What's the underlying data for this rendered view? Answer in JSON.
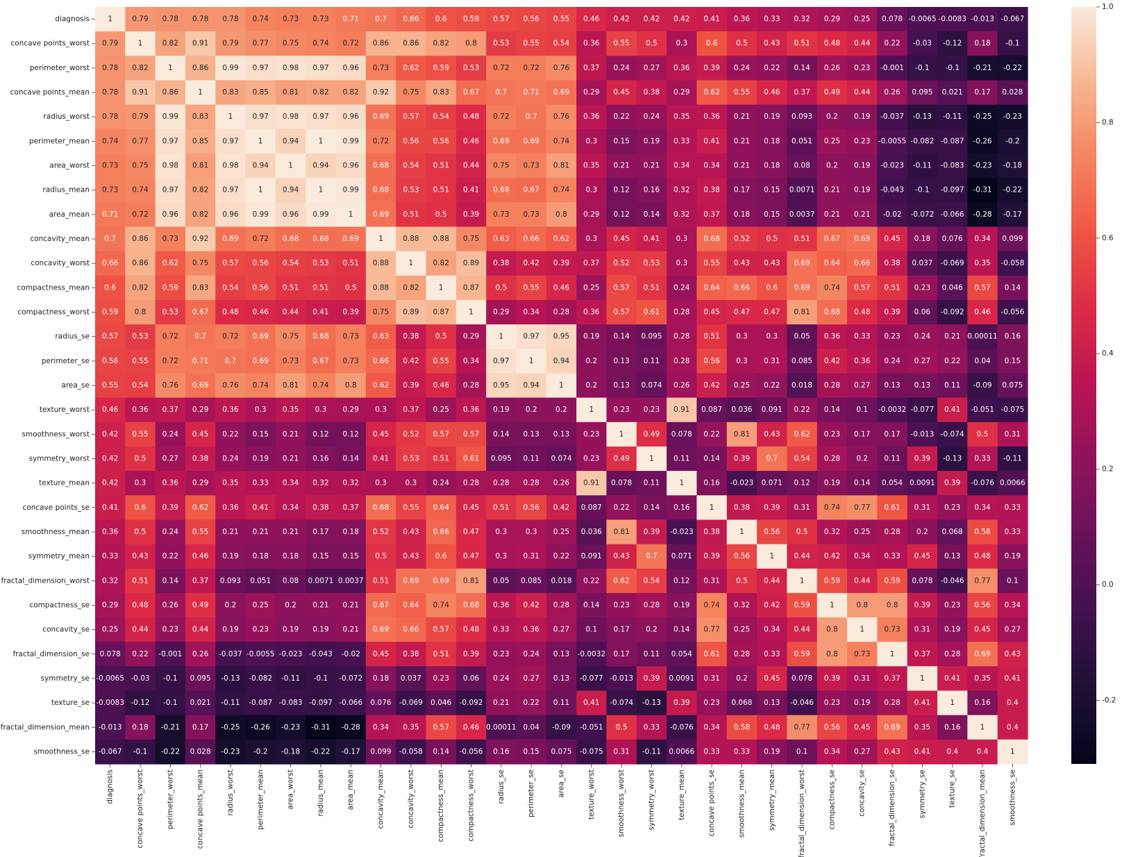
{
  "chart_data": {
    "type": "heatmap",
    "title": "",
    "xlabel": "",
    "ylabel": "",
    "labels": [
      "diagnosis",
      "concave points_worst",
      "perimeter_worst",
      "concave points_mean",
      "radius_worst",
      "perimeter_mean",
      "area_worst",
      "radius_mean",
      "area_mean",
      "concavity_mean",
      "concavity_worst",
      "compactness_mean",
      "compactness_worst",
      "radius_se",
      "perimeter_se",
      "area_se",
      "texture_worst",
      "smoothness_worst",
      "symmetry_worst",
      "texture_mean",
      "concave points_se",
      "smoothness_mean",
      "symmetry_mean",
      "fractal_dimension_worst",
      "compactness_se",
      "concavity_se",
      "fractal_dimension_se",
      "symmetry_se",
      "texture_se",
      "fractal_dimension_mean",
      "smoothness_se"
    ],
    "matrix_text": [
      [
        "1",
        "0.79",
        "0.78",
        "0.78",
        "0.78",
        "0.74",
        "0.73",
        "0.73",
        "0.71",
        "0.7",
        "0.66",
        "0.6",
        "0.59",
        "0.57",
        "0.56",
        "0.55",
        "0.46",
        "0.42",
        "0.42",
        "0.42",
        "0.41",
        "0.36",
        "0.33",
        "0.32",
        "0.29",
        "0.25",
        "0.078",
        "-0.0065",
        "-0.0083",
        "-0.013",
        "-0.067"
      ],
      [
        "0.79",
        "1",
        "0.82",
        "0.91",
        "0.79",
        "0.77",
        "0.75",
        "0.74",
        "0.72",
        "0.86",
        "0.86",
        "0.82",
        "0.8",
        "0.53",
        "0.55",
        "0.54",
        "0.36",
        "0.55",
        "0.5",
        "0.3",
        "0.6",
        "0.5",
        "0.43",
        "0.51",
        "0.48",
        "0.44",
        "0.22",
        "-0.03",
        "-0.12",
        "0.18",
        "-0.1"
      ],
      [
        "0.78",
        "0.82",
        "1",
        "0.86",
        "0.99",
        "0.97",
        "0.98",
        "0.97",
        "0.96",
        "0.73",
        "0.62",
        "0.59",
        "0.53",
        "0.72",
        "0.72",
        "0.76",
        "0.37",
        "0.24",
        "0.27",
        "0.36",
        "0.39",
        "0.24",
        "0.22",
        "0.14",
        "0.26",
        "0.23",
        "-0.001",
        "-0.1",
        "-0.1",
        "-0.21",
        "-0.22"
      ],
      [
        "0.78",
        "0.91",
        "0.86",
        "1",
        "0.83",
        "0.85",
        "0.81",
        "0.82",
        "0.82",
        "0.92",
        "0.75",
        "0.83",
        "0.67",
        "0.7",
        "0.71",
        "0.69",
        "0.29",
        "0.45",
        "0.38",
        "0.29",
        "0.62",
        "0.55",
        "0.46",
        "0.37",
        "0.49",
        "0.44",
        "0.26",
        "0.095",
        "0.021",
        "0.17",
        "0.028"
      ],
      [
        "0.78",
        "0.79",
        "0.99",
        "0.83",
        "1",
        "0.97",
        "0.98",
        "0.97",
        "0.96",
        "0.69",
        "0.57",
        "0.54",
        "0.48",
        "0.72",
        "0.7",
        "0.76",
        "0.36",
        "0.22",
        "0.24",
        "0.35",
        "0.36",
        "0.21",
        "0.19",
        "0.093",
        "0.2",
        "0.19",
        "-0.037",
        "-0.13",
        "-0.11",
        "-0.25",
        "-0.23"
      ],
      [
        "0.74",
        "0.77",
        "0.97",
        "0.85",
        "0.97",
        "1",
        "0.94",
        "1",
        "0.99",
        "0.72",
        "0.56",
        "0.56",
        "0.46",
        "0.69",
        "0.69",
        "0.74",
        "0.3",
        "0.15",
        "0.19",
        "0.33",
        "0.41",
        "0.21",
        "0.18",
        "0.051",
        "0.25",
        "0.23",
        "-0.0055",
        "-0.082",
        "-0.087",
        "-0.26",
        "-0.2"
      ],
      [
        "0.73",
        "0.75",
        "0.98",
        "0.81",
        "0.98",
        "0.94",
        "1",
        "0.94",
        "0.96",
        "0.68",
        "0.54",
        "0.51",
        "0.44",
        "0.75",
        "0.73",
        "0.81",
        "0.35",
        "0.21",
        "0.21",
        "0.34",
        "0.34",
        "0.21",
        "0.18",
        "0.08",
        "0.2",
        "0.19",
        "-0.023",
        "-0.11",
        "-0.083",
        "-0.23",
        "-0.18"
      ],
      [
        "0.73",
        "0.74",
        "0.97",
        "0.82",
        "0.97",
        "1",
        "0.94",
        "1",
        "0.99",
        "0.68",
        "0.53",
        "0.51",
        "0.41",
        "0.68",
        "0.67",
        "0.74",
        "0.3",
        "0.12",
        "0.16",
        "0.32",
        "0.38",
        "0.17",
        "0.15",
        "0.0071",
        "0.21",
        "0.19",
        "-0.043",
        "-0.1",
        "-0.097",
        "-0.31",
        "-0.22"
      ],
      [
        "0.71",
        "0.72",
        "0.96",
        "0.82",
        "0.96",
        "0.99",
        "0.96",
        "0.99",
        "1",
        "0.69",
        "0.51",
        "0.5",
        "0.39",
        "0.73",
        "0.73",
        "0.8",
        "0.29",
        "0.12",
        "0.14",
        "0.32",
        "0.37",
        "0.18",
        "0.15",
        "0.0037",
        "0.21",
        "0.21",
        "-0.02",
        "-0.072",
        "-0.066",
        "-0.28",
        "-0.17"
      ],
      [
        "0.7",
        "0.86",
        "0.73",
        "0.92",
        "0.69",
        "0.72",
        "0.68",
        "0.68",
        "0.69",
        "1",
        "0.88",
        "0.88",
        "0.75",
        "0.63",
        "0.66",
        "0.62",
        "0.3",
        "0.45",
        "0.41",
        "0.3",
        "0.68",
        "0.52",
        "0.5",
        "0.51",
        "0.67",
        "0.69",
        "0.45",
        "0.18",
        "0.076",
        "0.34",
        "0.099"
      ],
      [
        "0.66",
        "0.86",
        "0.62",
        "0.75",
        "0.57",
        "0.56",
        "0.54",
        "0.53",
        "0.51",
        "0.88",
        "1",
        "0.82",
        "0.89",
        "0.38",
        "0.42",
        "0.39",
        "0.37",
        "0.52",
        "0.53",
        "0.3",
        "0.55",
        "0.43",
        "0.43",
        "0.69",
        "0.64",
        "0.66",
        "0.38",
        "0.037",
        "-0.069",
        "0.35",
        "-0.058"
      ],
      [
        "0.6",
        "0.82",
        "0.59",
        "0.83",
        "0.54",
        "0.56",
        "0.51",
        "0.51",
        "0.5",
        "0.88",
        "0.82",
        "1",
        "0.87",
        "0.5",
        "0.55",
        "0.46",
        "0.25",
        "0.57",
        "0.51",
        "0.24",
        "0.64",
        "0.66",
        "0.6",
        "0.69",
        "0.74",
        "0.57",
        "0.51",
        "0.23",
        "0.046",
        "0.57",
        "0.14"
      ],
      [
        "0.59",
        "0.8",
        "0.53",
        "0.67",
        "0.48",
        "0.46",
        "0.44",
        "0.41",
        "0.39",
        "0.75",
        "0.89",
        "0.87",
        "1",
        "0.29",
        "0.34",
        "0.28",
        "0.36",
        "0.57",
        "0.61",
        "0.28",
        "0.45",
        "0.47",
        "0.47",
        "0.81",
        "0.68",
        "0.48",
        "0.39",
        "0.06",
        "-0.092",
        "0.46",
        "-0.056"
      ],
      [
        "0.57",
        "0.53",
        "0.72",
        "0.7",
        "0.72",
        "0.69",
        "0.75",
        "0.68",
        "0.73",
        "0.63",
        "0.38",
        "0.5",
        "0.29",
        "1",
        "0.97",
        "0.95",
        "0.19",
        "0.14",
        "0.095",
        "0.28",
        "0.51",
        "0.3",
        "0.3",
        "0.05",
        "0.36",
        "0.33",
        "0.23",
        "0.24",
        "0.21",
        "0.00011",
        "0.16"
      ],
      [
        "0.56",
        "0.55",
        "0.72",
        "0.71",
        "0.7",
        "0.69",
        "0.73",
        "0.67",
        "0.73",
        "0.66",
        "0.42",
        "0.55",
        "0.34",
        "0.97",
        "1",
        "0.94",
        "0.2",
        "0.13",
        "0.11",
        "0.28",
        "0.56",
        "0.3",
        "0.31",
        "0.085",
        "0.42",
        "0.36",
        "0.24",
        "0.27",
        "0.22",
        "0.04",
        "0.15"
      ],
      [
        "0.55",
        "0.54",
        "0.76",
        "0.69",
        "0.76",
        "0.74",
        "0.81",
        "0.74",
        "0.8",
        "0.62",
        "0.39",
        "0.46",
        "0.28",
        "0.95",
        "0.94",
        "1",
        "0.2",
        "0.13",
        "0.074",
        "0.26",
        "0.42",
        "0.25",
        "0.22",
        "0.018",
        "0.28",
        "0.27",
        "0.13",
        "0.13",
        "0.11",
        "-0.09",
        "0.075"
      ],
      [
        "0.46",
        "0.36",
        "0.37",
        "0.29",
        "0.36",
        "0.3",
        "0.35",
        "0.3",
        "0.29",
        "0.3",
        "0.37",
        "0.25",
        "0.36",
        "0.19",
        "0.2",
        "0.2",
        "1",
        "0.23",
        "0.23",
        "0.91",
        "0.087",
        "0.036",
        "0.091",
        "0.22",
        "0.14",
        "0.1",
        "-0.0032",
        "-0.077",
        "0.41",
        "-0.051",
        "-0.075"
      ],
      [
        "0.42",
        "0.55",
        "0.24",
        "0.45",
        "0.22",
        "0.15",
        "0.21",
        "0.12",
        "0.12",
        "0.45",
        "0.52",
        "0.57",
        "0.57",
        "0.14",
        "0.13",
        "0.13",
        "0.23",
        "1",
        "0.49",
        "0.078",
        "0.22",
        "0.81",
        "0.43",
        "0.62",
        "0.23",
        "0.17",
        "0.17",
        "-0.013",
        "-0.074",
        "0.5",
        "0.31"
      ],
      [
        "0.42",
        "0.5",
        "0.27",
        "0.38",
        "0.24",
        "0.19",
        "0.21",
        "0.16",
        "0.14",
        "0.41",
        "0.53",
        "0.51",
        "0.61",
        "0.095",
        "0.11",
        "0.074",
        "0.23",
        "0.49",
        "1",
        "0.11",
        "0.14",
        "0.39",
        "0.7",
        "0.54",
        "0.28",
        "0.2",
        "0.11",
        "0.39",
        "-0.13",
        "0.33",
        "-0.11"
      ],
      [
        "0.42",
        "0.3",
        "0.36",
        "0.29",
        "0.35",
        "0.33",
        "0.34",
        "0.32",
        "0.32",
        "0.3",
        "0.3",
        "0.24",
        "0.28",
        "0.28",
        "0.28",
        "0.26",
        "0.91",
        "0.078",
        "0.11",
        "1",
        "0.16",
        "-0.023",
        "0.071",
        "0.12",
        "0.19",
        "0.14",
        "0.054",
        "0.0091",
        "0.39",
        "-0.076",
        "0.0066"
      ],
      [
        "0.41",
        "0.6",
        "0.39",
        "0.62",
        "0.36",
        "0.41",
        "0.34",
        "0.38",
        "0.37",
        "0.68",
        "0.55",
        "0.64",
        "0.45",
        "0.51",
        "0.56",
        "0.42",
        "0.087",
        "0.22",
        "0.14",
        "0.16",
        "1",
        "0.38",
        "0.39",
        "0.31",
        "0.74",
        "0.77",
        "0.61",
        "0.31",
        "0.23",
        "0.34",
        "0.33"
      ],
      [
        "0.36",
        "0.5",
        "0.24",
        "0.55",
        "0.21",
        "0.21",
        "0.21",
        "0.17",
        "0.18",
        "0.52",
        "0.43",
        "0.66",
        "0.47",
        "0.3",
        "0.3",
        "0.25",
        "0.036",
        "0.81",
        "0.39",
        "-0.023",
        "0.38",
        "1",
        "0.56",
        "0.5",
        "0.32",
        "0.25",
        "0.28",
        "0.2",
        "0.068",
        "0.58",
        "0.33"
      ],
      [
        "0.33",
        "0.43",
        "0.22",
        "0.46",
        "0.19",
        "0.18",
        "0.18",
        "0.15",
        "0.15",
        "0.5",
        "0.43",
        "0.6",
        "0.47",
        "0.3",
        "0.31",
        "0.22",
        "0.091",
        "0.43",
        "0.7",
        "0.071",
        "0.39",
        "0.56",
        "1",
        "0.44",
        "0.42",
        "0.34",
        "0.33",
        "0.45",
        "0.13",
        "0.48",
        "0.19"
      ],
      [
        "0.32",
        "0.51",
        "0.14",
        "0.37",
        "0.093",
        "0.051",
        "0.08",
        "0.0071",
        "0.0037",
        "0.51",
        "0.69",
        "0.69",
        "0.81",
        "0.05",
        "0.085",
        "0.018",
        "0.22",
        "0.62",
        "0.54",
        "0.12",
        "0.31",
        "0.5",
        "0.44",
        "1",
        "0.59",
        "0.44",
        "0.59",
        "0.078",
        "-0.046",
        "0.77",
        "0.1"
      ],
      [
        "0.29",
        "0.48",
        "0.26",
        "0.49",
        "0.2",
        "0.25",
        "0.2",
        "0.21",
        "0.21",
        "0.67",
        "0.64",
        "0.74",
        "0.68",
        "0.36",
        "0.42",
        "0.28",
        "0.14",
        "0.23",
        "0.28",
        "0.19",
        "0.74",
        "0.32",
        "0.42",
        "0.59",
        "1",
        "0.8",
        "0.8",
        "0.39",
        "0.23",
        "0.56",
        "0.34"
      ],
      [
        "0.25",
        "0.44",
        "0.23",
        "0.44",
        "0.19",
        "0.23",
        "0.19",
        "0.19",
        "0.21",
        "0.69",
        "0.66",
        "0.57",
        "0.48",
        "0.33",
        "0.36",
        "0.27",
        "0.1",
        "0.17",
        "0.2",
        "0.14",
        "0.77",
        "0.25",
        "0.34",
        "0.44",
        "0.8",
        "1",
        "0.73",
        "0.31",
        "0.19",
        "0.45",
        "0.27"
      ],
      [
        "0.078",
        "0.22",
        "-0.001",
        "0.26",
        "-0.037",
        "-0.0055",
        "-0.023",
        "-0.043",
        "-0.02",
        "0.45",
        "0.38",
        "0.51",
        "0.39",
        "0.23",
        "0.24",
        "0.13",
        "-0.0032",
        "0.17",
        "0.11",
        "0.054",
        "0.61",
        "0.28",
        "0.33",
        "0.59",
        "0.8",
        "0.73",
        "1",
        "0.37",
        "0.28",
        "0.69",
        "0.43"
      ],
      [
        "-0.0065",
        "-0.03",
        "-0.1",
        "0.095",
        "-0.13",
        "-0.082",
        "-0.11",
        "-0.1",
        "-0.072",
        "0.18",
        "0.037",
        "0.23",
        "0.06",
        "0.24",
        "0.27",
        "0.13",
        "-0.077",
        "-0.013",
        "0.39",
        "0.0091",
        "0.31",
        "0.2",
        "0.45",
        "0.078",
        "0.39",
        "0.31",
        "0.37",
        "1",
        "0.41",
        "0.35",
        "0.41"
      ],
      [
        "-0.0083",
        "-0.12",
        "-0.1",
        "0.021",
        "-0.11",
        "-0.087",
        "-0.083",
        "-0.097",
        "-0.066",
        "0.076",
        "-0.069",
        "0.046",
        "-0.092",
        "0.21",
        "0.22",
        "0.11",
        "0.41",
        "-0.074",
        "-0.13",
        "0.39",
        "0.23",
        "0.068",
        "0.13",
        "-0.046",
        "0.23",
        "0.19",
        "0.28",
        "0.41",
        "1",
        "0.16",
        "0.4"
      ],
      [
        "-0.013",
        "0.18",
        "-0.21",
        "0.17",
        "-0.25",
        "-0.26",
        "-0.23",
        "-0.31",
        "-0.28",
        "0.34",
        "0.35",
        "0.57",
        "0.46",
        "0.00011",
        "0.04",
        "-0.09",
        "-0.051",
        "0.5",
        "0.33",
        "-0.076",
        "0.34",
        "0.58",
        "0.48",
        "0.77",
        "0.56",
        "0.45",
        "0.69",
        "0.35",
        "0.16",
        "1",
        "0.4"
      ],
      [
        "-0.067",
        "-0.1",
        "-0.22",
        "0.028",
        "-0.23",
        "-0.2",
        "-0.18",
        "-0.22",
        "-0.17",
        "0.099",
        "-0.058",
        "0.14",
        "-0.056",
        "0.16",
        "0.15",
        "0.075",
        "-0.075",
        "0.31",
        "-0.11",
        "0.0066",
        "0.33",
        "0.33",
        "0.19",
        "0.1",
        "0.34",
        "0.27",
        "0.43",
        "0.41",
        "0.4",
        "0.4",
        "1"
      ]
    ],
    "value_range": [
      -0.31,
      1
    ],
    "colormap": "rocket",
    "colorbar_ticks": [
      "1.0",
      "0.8",
      "0.6",
      "0.4",
      "0.2",
      "0.0",
      "-0.2"
    ],
    "colorbar_tick_values": [
      1.0,
      0.8,
      0.6,
      0.4,
      0.2,
      0.0,
      -0.2
    ],
    "annot_light_color": "#ffffff",
    "annot_dark_color": "#262626",
    "legend": "colorbar-right",
    "grid": false
  }
}
